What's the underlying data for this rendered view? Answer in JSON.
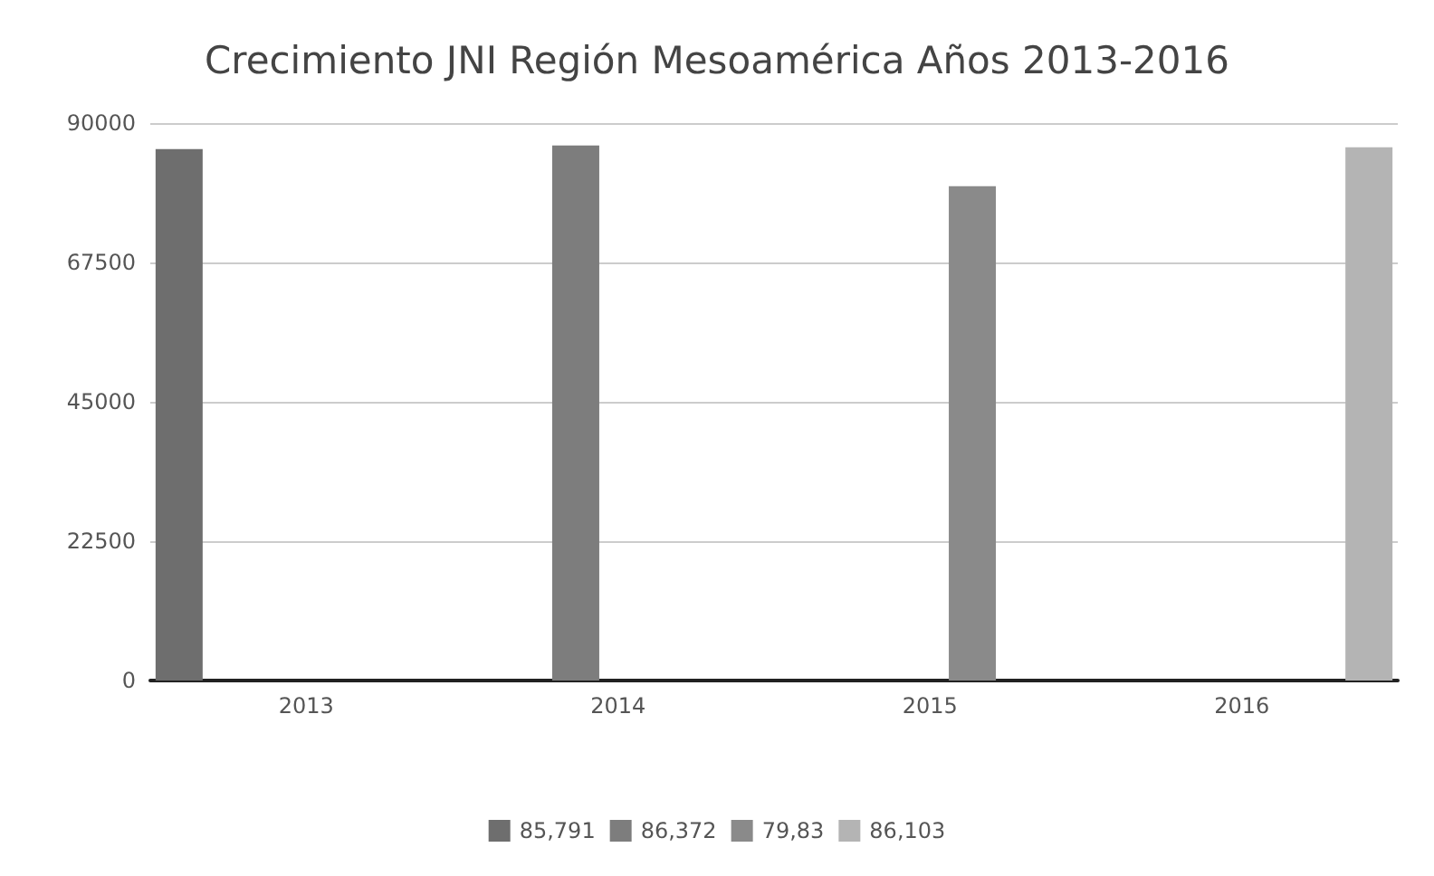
{
  "chart_data": {
    "type": "bar",
    "title": "Crecimiento JNI Región Mesoamérica Años 2013-2016",
    "categories": [
      "2013",
      "2014",
      "2015",
      "2016"
    ],
    "series": [
      {
        "name": "85,791",
        "color": "#6e6e6e",
        "values": [
          85800,
          null,
          null,
          null
        ]
      },
      {
        "name": "86,372",
        "color": "#7d7d7d",
        "values": [
          null,
          86400,
          null,
          null
        ]
      },
      {
        "name": "79,83",
        "color": "#8a8a8a",
        "values": [
          null,
          null,
          79800,
          null
        ]
      },
      {
        "name": "86,103",
        "color": "#b4b4b4",
        "values": [
          null,
          null,
          null,
          86100
        ]
      }
    ],
    "ylim": [
      0,
      90000
    ],
    "yticks": [
      0,
      22500,
      45000,
      67500,
      90000
    ],
    "grid": "y",
    "legend": "bottom"
  }
}
